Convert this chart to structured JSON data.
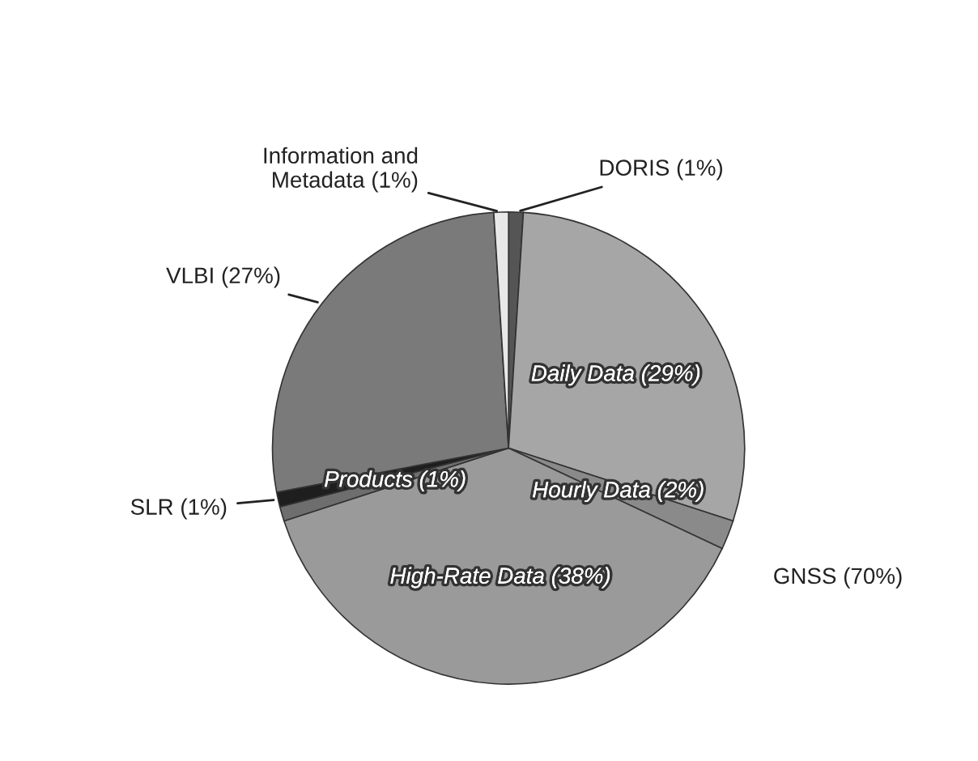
{
  "chart_data": {
    "type": "pie",
    "categories": [
      "DORIS (1%)",
      "Daily Data (29%)",
      "Hourly Data (2%)",
      "High-Rate Data (38%)",
      "Products (1%)",
      "SLR (1%)",
      "VLBI (27%)",
      "Information and\nMetadata (1%)"
    ],
    "values": [
      1,
      29,
      2,
      38,
      1,
      1,
      27,
      1
    ],
    "colors": [
      "#555555",
      "#a6a6a6",
      "#8a8a8a",
      "#9a9a9a",
      "#6e6e6e",
      "#1e1e1e",
      "#7a7a7a",
      "#e8e8e8"
    ],
    "annotations": [
      "GNSS (70%)"
    ]
  }
}
